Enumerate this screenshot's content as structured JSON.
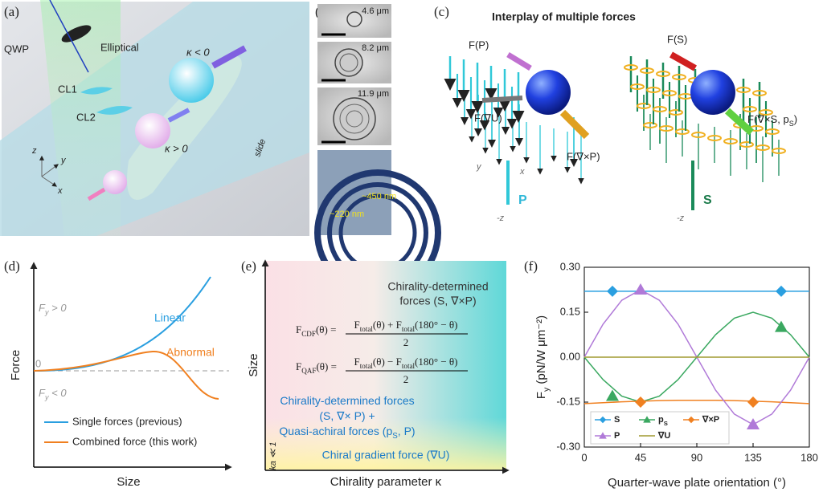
{
  "panels": {
    "a": {
      "label": "(a)",
      "qwp": "QWP",
      "elliptical": "Elliptical",
      "cl1": "CL1",
      "cl2": "CL2",
      "kappa_neg": "κ < 0",
      "kappa_pos": "κ > 0",
      "slide": "slide",
      "axis_z": "z",
      "axis_y": "y",
      "axis_x": "x"
    },
    "b": {
      "label": "(b)",
      "sizes": [
        "4.6 μm",
        "8.2 μm",
        "11.9 μm"
      ],
      "spacing_large": "~450 nm",
      "spacing_small": "~220 nm"
    },
    "c": {
      "label": "(c)",
      "title": "Interplay of multiple forces",
      "f_p": "F(P)",
      "f_gradu": "F(∇U)",
      "f_curlp": "F(∇×P)",
      "f_s": "F(S)",
      "f_curls": [
        "F(∇×S, p",
        "S",
        ")"
      ],
      "p": "P",
      "s": "S",
      "axis_y": "y",
      "axis_x": "x",
      "axis_z": [
        "-z",
        "-z"
      ]
    },
    "d": {
      "label": "(d)",
      "ylabel": "Force",
      "xlabel": "Size",
      "positive": [
        "F",
        "y",
        " > 0"
      ],
      "negative": [
        "F",
        "y",
        " < 0"
      ],
      "zero": "0",
      "linear": "Linear",
      "abnormal": "Abnormal",
      "legend": [
        "Single forces (previous)",
        "Combined force (this work)"
      ]
    },
    "e": {
      "label": "(e)",
      "top": [
        "Chirality-determined",
        "forces (S, ∇×P)"
      ],
      "eq_cdf": {
        "lhs": [
          "F",
          "CDF",
          "(θ) ="
        ],
        "numerator": [
          "F",
          "total",
          "(θ) + F",
          "total",
          "(180° − θ)"
        ],
        "denominator": "2"
      },
      "eq_qaf": {
        "lhs": [
          "F",
          "QAF",
          "(θ) ="
        ],
        "numerator": [
          "F",
          "total",
          "(θ) − F",
          "total",
          "(180° − θ)"
        ],
        "denominator": "2"
      },
      "middle": [
        [
          "Chirality-determined forces"
        ],
        [
          "(S, ∇× P) +"
        ],
        [
          "Quasi-achiral forces (p",
          "S",
          ", P)"
        ]
      ],
      "bottom": "Chiral gradient force (∇U)",
      "ka": "ka ≪ 1",
      "ylabel": "Size",
      "xlabel": "Chirality parameter κ"
    }
  },
  "chart_data": {
    "type": "line",
    "label": "(f)",
    "xlabel": "Quarter-wave plate orientation (°)",
    "ylabel": [
      "F",
      "y",
      " (pN/W μm⁻²)"
    ],
    "xlim": [
      0,
      180
    ],
    "xticks": [
      0,
      45,
      90,
      135,
      180
    ],
    "ylim": [
      -0.3,
      0.3
    ],
    "yticks": [
      {
        "value": 0.3,
        "label": "0.30"
      },
      0.15,
      {
        "value": 0,
        "label": "0.00"
      },
      -0.15,
      {
        "value": -0.3,
        "label": "-0.30"
      }
    ],
    "series": [
      {
        "name": "S",
        "color": "#2a9fe0",
        "marker": "diamond",
        "x": [
          0,
          15,
          30,
          45,
          60,
          75,
          90,
          105,
          120,
          135,
          150,
          165,
          180
        ],
        "values": [
          0.22,
          0.22,
          0.22,
          0.22,
          0.22,
          0.22,
          0.22,
          0.22,
          0.22,
          0.22,
          0.22,
          0.22,
          0.22
        ],
        "marker_x": [
          22.5,
          157.5
        ],
        "marker_values": [
          0.22,
          0.22
        ]
      },
      {
        "name": [
          "p",
          "S"
        ],
        "color": "#3aa860",
        "marker": "triangle",
        "x": [
          0,
          15,
          30,
          45,
          60,
          75,
          90,
          105,
          120,
          135,
          150,
          165,
          180
        ],
        "values": [
          0,
          -0.075,
          -0.13,
          -0.15,
          -0.13,
          -0.075,
          0,
          0.075,
          0.13,
          0.15,
          0.13,
          0.075,
          0
        ],
        "marker_x": [
          22.5,
          157.5
        ],
        "marker_values": [
          -0.13,
          0.1
        ]
      },
      {
        "name": "∇×P",
        "color": "#f08020",
        "marker": "diamond",
        "x": [
          0,
          15,
          30,
          45,
          60,
          75,
          90,
          105,
          120,
          135,
          150,
          165,
          180
        ],
        "values": [
          -0.155,
          -0.152,
          -0.149,
          -0.147,
          -0.145,
          -0.144,
          -0.144,
          -0.144,
          -0.145,
          -0.147,
          -0.149,
          -0.152,
          -0.155
        ],
        "marker_x": [
          45,
          135
        ],
        "marker_values": [
          -0.15,
          -0.15
        ]
      },
      {
        "name": "P",
        "color": "#b07ad8",
        "marker": "triangle",
        "x": [
          0,
          15,
          30,
          45,
          60,
          75,
          90,
          105,
          120,
          135,
          150,
          165,
          180
        ],
        "values": [
          0,
          0.11,
          0.19,
          0.225,
          0.19,
          0.11,
          0,
          -0.11,
          -0.19,
          -0.225,
          -0.19,
          -0.11,
          0
        ],
        "marker_x": [
          45,
          135
        ],
        "marker_values": [
          0.225,
          -0.225
        ]
      },
      {
        "name": "∇U",
        "color": "#a09a30",
        "marker": "none",
        "x": [
          0,
          15,
          30,
          45,
          60,
          75,
          90,
          105,
          120,
          135,
          150,
          165,
          180
        ],
        "values": [
          0,
          0,
          0,
          0,
          0,
          0,
          0,
          0,
          0,
          0,
          0,
          0,
          0
        ],
        "marker_x": [],
        "marker_values": []
      }
    ]
  }
}
